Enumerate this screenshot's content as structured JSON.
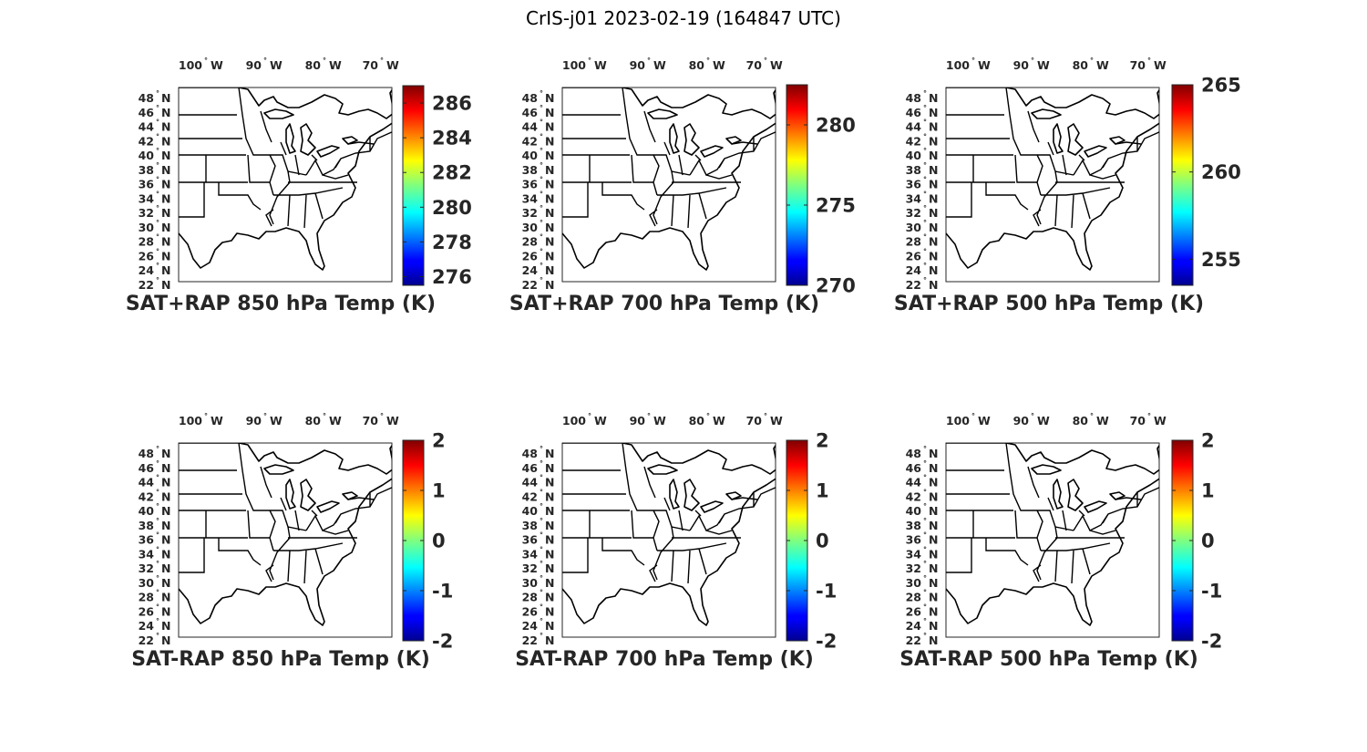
{
  "figure_title": "CrIS-j01 2023-02-19 (164847 UTC)",
  "lon_ticks": [
    {
      "value": "100",
      "hemi": "W"
    },
    {
      "value": "90",
      "hemi": "W"
    },
    {
      "value": "80",
      "hemi": "W"
    },
    {
      "value": "70",
      "hemi": "W"
    }
  ],
  "lat_ticks": [
    {
      "value": "48",
      "hemi": "N"
    },
    {
      "value": "46",
      "hemi": "N"
    },
    {
      "value": "44",
      "hemi": "N"
    },
    {
      "value": "42",
      "hemi": "N"
    },
    {
      "value": "40",
      "hemi": "N"
    },
    {
      "value": "38",
      "hemi": "N"
    },
    {
      "value": "36",
      "hemi": "N"
    },
    {
      "value": "34",
      "hemi": "N"
    },
    {
      "value": "32",
      "hemi": "N"
    },
    {
      "value": "30",
      "hemi": "N"
    },
    {
      "value": "28",
      "hemi": "N"
    },
    {
      "value": "26",
      "hemi": "N"
    },
    {
      "value": "24",
      "hemi": "N"
    },
    {
      "value": "22",
      "hemi": "N"
    }
  ],
  "colormap": "jet",
  "panels": [
    {
      "title": "SAT+RAP 850 hPa Temp (K)",
      "cb_range": [
        275.5,
        287
      ],
      "cb_ticks": [
        "286",
        "284",
        "282",
        "280",
        "278",
        "276"
      ]
    },
    {
      "title": "SAT+RAP 700 hPa Temp (K)",
      "cb_range": [
        270,
        282.5
      ],
      "cb_ticks": [
        "280",
        "275",
        "270"
      ]
    },
    {
      "title": "SAT+RAP 500 hPa Temp (K)",
      "cb_range": [
        253.5,
        265
      ],
      "cb_ticks": [
        "265",
        "260",
        "255"
      ]
    },
    {
      "title": "SAT-RAP 850 hPa Temp (K)",
      "cb_range": [
        -2,
        2
      ],
      "cb_ticks": [
        "2",
        "1",
        "0",
        "-1",
        "-2"
      ]
    },
    {
      "title": "SAT-RAP 700 hPa Temp (K)",
      "cb_range": [
        -2,
        2
      ],
      "cb_ticks": [
        "2",
        "1",
        "0",
        "-1",
        "-2"
      ]
    },
    {
      "title": "SAT-RAP 500 hPa Temp (K)",
      "cb_range": [
        -2,
        2
      ],
      "cb_ticks": [
        "2",
        "1",
        "0",
        "-1",
        "-2"
      ]
    }
  ]
}
